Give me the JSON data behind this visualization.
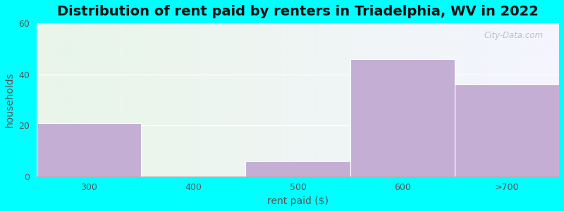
{
  "title": "Distribution of rent paid by renters in Triadelphia, WV in 2022",
  "xlabel": "rent paid ($)",
  "ylabel": "households",
  "categories": [
    "300",
    "400",
    "500",
    "600",
    ">700"
  ],
  "bar_lefts": [
    0,
    1,
    2,
    3,
    4
  ],
  "bar_widths": [
    1,
    1,
    1,
    1,
    1
  ],
  "values": [
    21,
    0,
    6,
    46,
    36
  ],
  "xtick_positions": [
    0.5,
    1.5,
    2.5,
    3.5,
    4.5
  ],
  "bar_color": "#c4aed4",
  "ylim": [
    0,
    60
  ],
  "yticks": [
    0,
    20,
    40,
    60
  ],
  "bg_color": "#00ffff",
  "plot_bg_grad_left": "#e8f5e8",
  "plot_bg_grad_right": "#f8f8ff",
  "title_fontsize": 14,
  "axis_label_fontsize": 10,
  "tick_fontsize": 9,
  "watermark": "City-Data.com",
  "grid_color": "#dddddd",
  "text_color": "#555555"
}
